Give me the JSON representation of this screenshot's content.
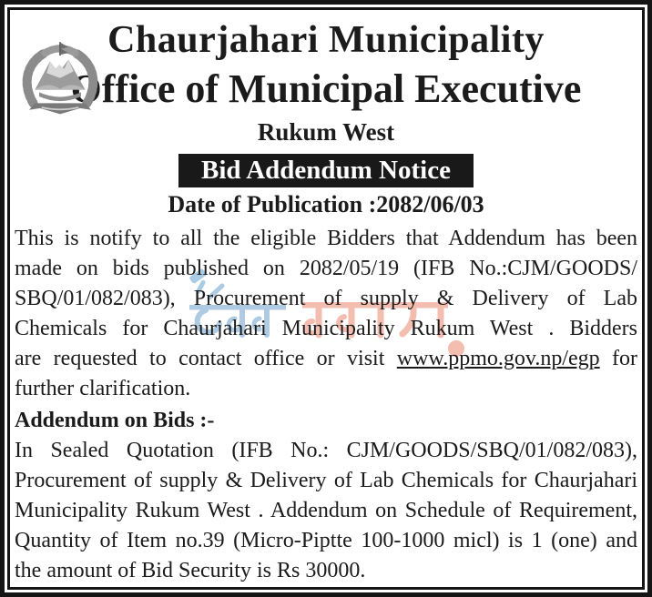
{
  "document": {
    "title": "Chaurjahari Municipality",
    "office": "Office of Municipal Executive",
    "district": "Rukum West",
    "badge": "Bid Addendum Notice",
    "publication_date": "Date of Publication :2082/06/03"
  },
  "body": {
    "paragraph1": [
      {
        "align": "justify",
        "segs": [
          {
            "t": "This is notify to all the eligible Bidders that Addendum has been"
          }
        ]
      },
      {
        "align": "justify",
        "segs": [
          {
            "t": "made on bids published on 2082/05/19 (IFB No.:CJM/GOODS/"
          }
        ]
      },
      {
        "align": "justify",
        "segs": [
          {
            "t": "SBQ/01/082/083), Procurement of supply & Delivery of Lab"
          }
        ]
      },
      {
        "align": "justify",
        "segs": [
          {
            "t": "Chemicals for Chaurjahari Municipality Rukum West . Bidders"
          }
        ]
      },
      {
        "align": "justify",
        "segs": [
          {
            "t": "are requested to contact office or visit "
          },
          {
            "t": "www.ppmo.gov.np/egp",
            "u": true
          },
          {
            "t": " for"
          }
        ]
      },
      {
        "align": "left",
        "segs": [
          {
            "t": "further clarification."
          }
        ]
      }
    ],
    "addendum_heading": "Addendum on Bids :-",
    "paragraph2": [
      {
        "align": "justify",
        "segs": [
          {
            "t": "In Sealed Quotation (IFB No.: CJM/GOODS/SBQ/01/082/083),"
          }
        ]
      },
      {
        "align": "justify",
        "segs": [
          {
            "t": "Procurement of supply & Delivery of Lab Chemicals for Chaurjahari"
          }
        ]
      },
      {
        "align": "justify",
        "segs": [
          {
            "t": "Municipality Rukum West . Addendum on Schedule of Requirement,"
          }
        ]
      },
      {
        "align": "justify",
        "segs": [
          {
            "t": "Quantity of Item no.39 (Micro-Piptte 100-1000 micl) is 1 (one) and"
          }
        ]
      },
      {
        "align": "left",
        "segs": [
          {
            "t": "the amount of Bid Security is Rs 30000."
          }
        ]
      }
    ]
  },
  "watermark": {
    "label": "ठेक्का बजार",
    "text_blue": "ठेक्का",
    "text_red": "बजार",
    "color_blue": "#aecbe3",
    "color_red": "#f3bdb0"
  },
  "colors": {
    "text": "#1b1b1b",
    "border": "#151515",
    "badge_bg": "#191919",
    "badge_text": "#ffffff"
  }
}
